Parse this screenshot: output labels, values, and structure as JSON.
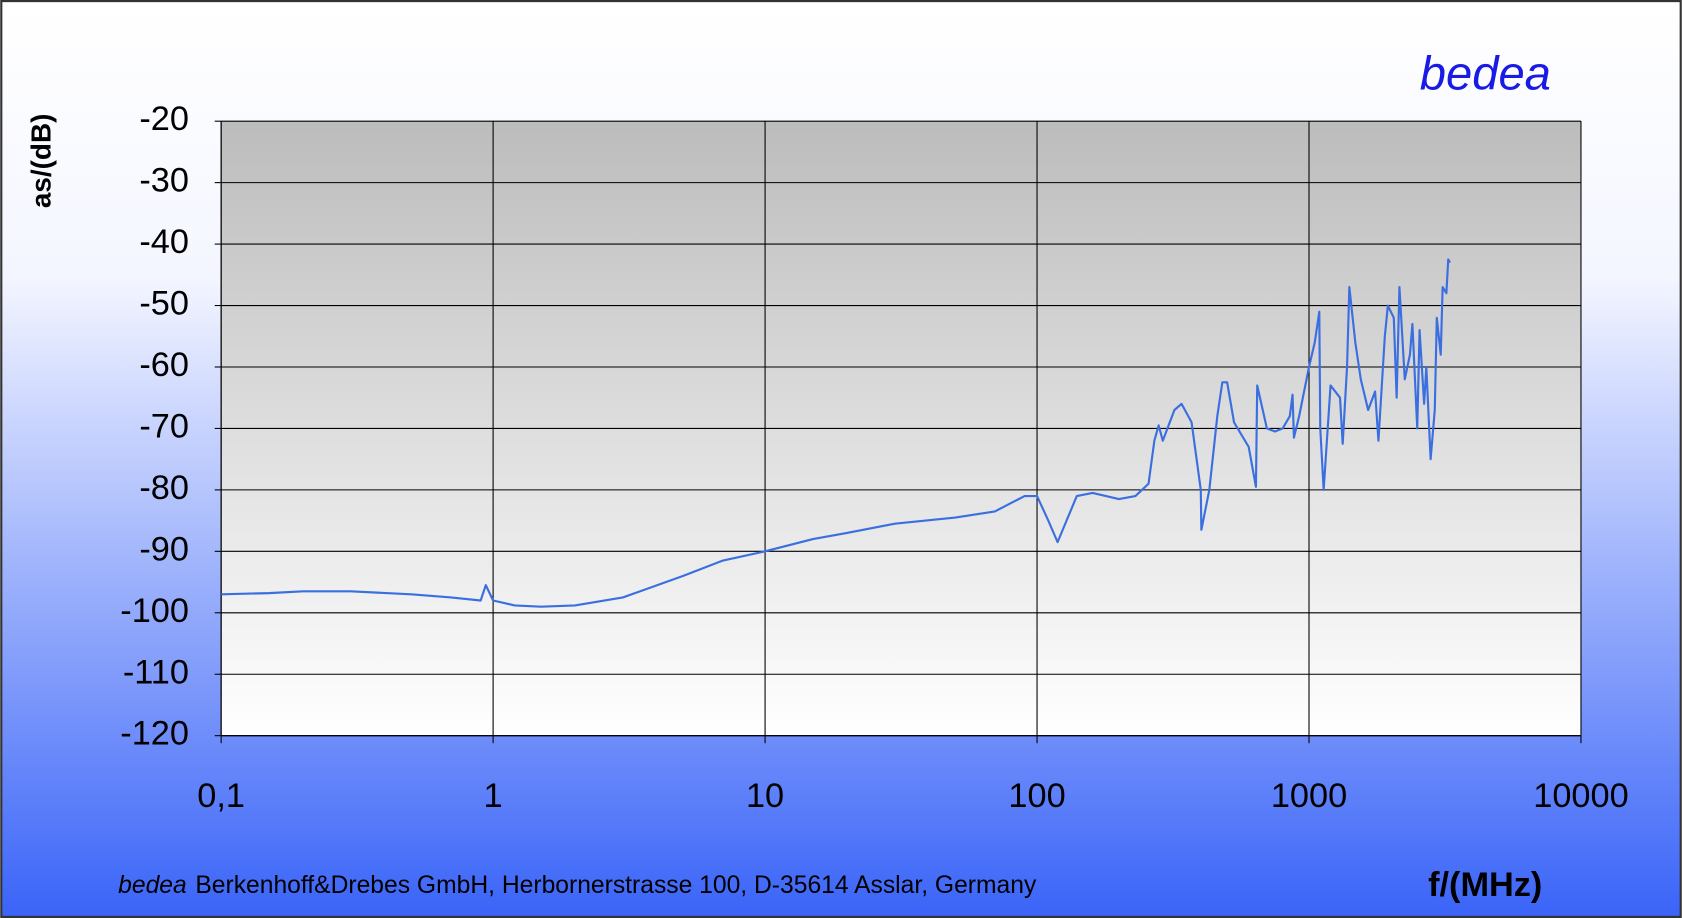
{
  "chart_data": {
    "type": "line",
    "brand": "bedea",
    "footer": {
      "company_italic": "bedea",
      "address": "Berkenhoff&Drebes GmbH, Herbornerstrasse 100, D-35614 Asslar, Germany"
    },
    "ylabel": "as/(dB)",
    "xlabel": "f/(MHz)",
    "xscale": "log",
    "grid": true,
    "xlim": [
      0.1,
      10000
    ],
    "xticks": [
      {
        "value": 0.1,
        "label": "0,1"
      },
      1,
      10,
      100,
      1000,
      10000
    ],
    "ylim": [
      -120,
      -20
    ],
    "yticks": [
      -20,
      -30,
      -40,
      -50,
      -60,
      -70,
      -80,
      -90,
      -100,
      -110,
      -120
    ],
    "series": [
      {
        "color": "#3b6fe0",
        "x": [
          0.1,
          0.15,
          0.2,
          0.3,
          0.5,
          0.7,
          0.9,
          0.94,
          1.0,
          1.2,
          1.5,
          2,
          3,
          5,
          7,
          10,
          15,
          20,
          30,
          50,
          70,
          90,
          100,
          110,
          119,
          140,
          160,
          200,
          230,
          257,
          270,
          280,
          290,
          320,
          340,
          370,
          400,
          402,
          430,
          460,
          480,
          500,
          530,
          600,
          638,
          645,
          700,
          750,
          800,
          850,
          870,
          880,
          920,
          1000,
          1050,
          1091,
          1100,
          1132,
          1200,
          1300,
          1330,
          1380,
          1407,
          1480,
          1550,
          1650,
          1750,
          1800,
          1900,
          1950,
          2050,
          2100,
          2150,
          2250,
          2350,
          2400,
          2500,
          2550,
          2650,
          2700,
          2800,
          2900,
          2950,
          3050,
          3100,
          3200,
          3250,
          3300
        ],
        "values": [
          -97,
          -96.8,
          -96.5,
          -96.5,
          -97,
          -97.5,
          -98,
          -95.5,
          -98,
          -98.8,
          -99,
          -98.8,
          -97.5,
          -94,
          -91.5,
          -90,
          -88,
          -87,
          -85.5,
          -84.5,
          -83.5,
          -81,
          -81,
          -85,
          -88.5,
          -81,
          -80.5,
          -81.5,
          -81,
          -79,
          -72,
          -69.5,
          -72,
          -67,
          -66,
          -69,
          -80,
          -86.5,
          -80,
          -68,
          -62.5,
          -62.5,
          -69,
          -73,
          -79.5,
          -63,
          -70,
          -70.5,
          -70,
          -68,
          -64.5,
          -71.5,
          -68,
          -60,
          -56,
          -51,
          -70,
          -80,
          -63,
          -65,
          -72.5,
          -60,
          -47,
          -56,
          -62,
          -67,
          -64,
          -72,
          -55,
          -50,
          -52,
          -65,
          -47,
          -62,
          -58,
          -53,
          -70,
          -54,
          -66,
          -60,
          -75,
          -67,
          -52,
          -58,
          -47,
          -48,
          -42.5,
          -43
        ]
      }
    ]
  }
}
